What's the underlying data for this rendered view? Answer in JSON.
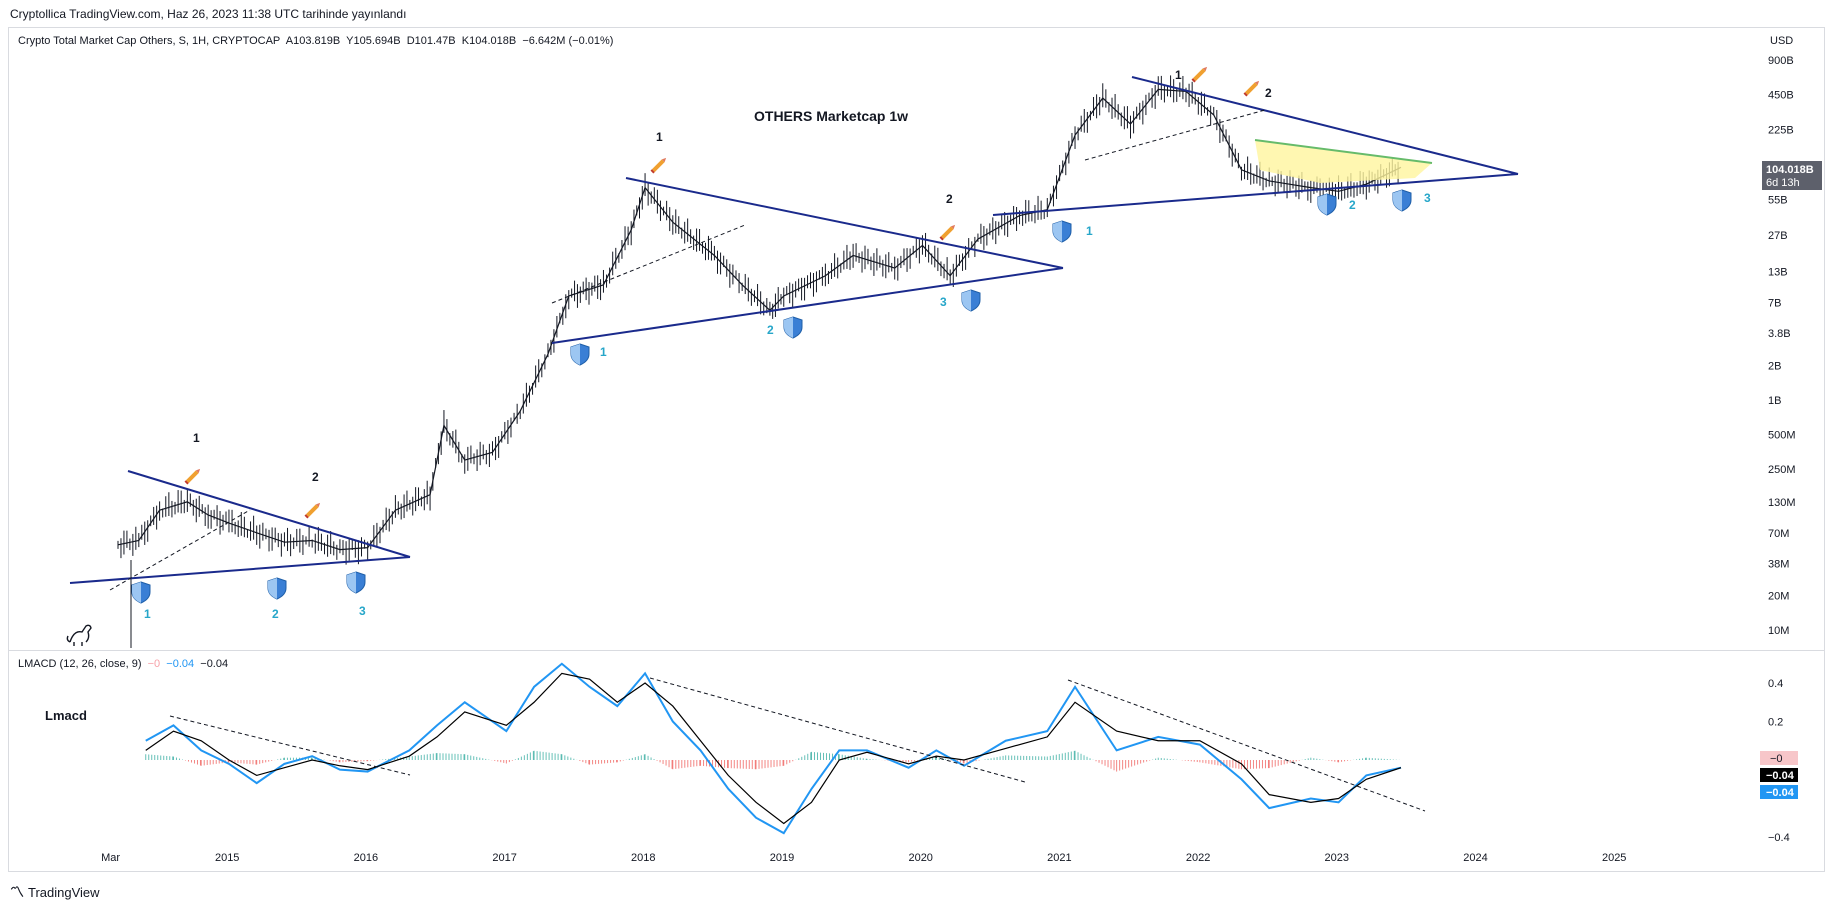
{
  "header": {
    "publisher": "Cryptollica TradingView.com, Haz 26, 2023 11:38 UTC tarihinde yayınlandı"
  },
  "legend": {
    "symbol": "Crypto Total Market Cap Others, S, 1H, CRYPTOCAP",
    "open": "A103.819B",
    "high": "Y105.694B",
    "low": "D101.47B",
    "close": "K104.018B",
    "change": "−6.642M (−0.01%)"
  },
  "currency": "USD",
  "price_tag": {
    "value": "104.018B",
    "countdown": "6d 13h"
  },
  "lmacd_legend": {
    "name": "LMACD (12, 26, close, 9)",
    "v1": "−0",
    "v2": "−0.04",
    "v3": "−0.04"
  },
  "lmacd_tags": {
    "zero": "−0",
    "signal": "−0.04",
    "macd": "−0.04"
  },
  "annotation_title": "OTHERS  Marketcap 1w",
  "lmacd_label": "Lmacd",
  "footer": {
    "brand": "TradingView"
  },
  "colors": {
    "trendline": "#1a2a8c",
    "macd": "#2196f3",
    "signal": "#000000",
    "hist_pos": "#26a69a",
    "hist_neg": "#ef5350",
    "shield": "#3a7fd5",
    "yellow_fill": "#fff59d",
    "green_line": "#66bb6a"
  },
  "chart_data": [
    {
      "type": "line",
      "scale": "log",
      "y_ticks": [
        "900B",
        "450B",
        "225B",
        "104.018B",
        "55B",
        "27B",
        "13B",
        "7B",
        "3.8B",
        "2B",
        "1B",
        "500M",
        "250M",
        "130M",
        "70M",
        "38M",
        "20M",
        "10M"
      ],
      "x_ticks": [
        "Mar",
        "2015",
        "2016",
        "2017",
        "2018",
        "2019",
        "2020",
        "2021",
        "2022",
        "2023",
        "2024",
        "2025"
      ],
      "x": [
        2014.2,
        2014.35,
        2014.5,
        2014.7,
        2014.85,
        2015.0,
        2015.2,
        2015.4,
        2015.6,
        2015.8,
        2016.0,
        2016.2,
        2016.45,
        2016.55,
        2016.7,
        2016.9,
        2017.1,
        2017.3,
        2017.45,
        2017.7,
        2017.9,
        2018.0,
        2018.2,
        2018.5,
        2018.7,
        2018.9,
        2019.0,
        2019.3,
        2019.5,
        2019.8,
        2020.0,
        2020.2,
        2020.4,
        2020.7,
        2020.9,
        2021.1,
        2021.3,
        2021.5,
        2021.7,
        2021.9,
        2022.1,
        2022.3,
        2022.5,
        2022.8,
        2023.0,
        2023.2,
        2023.45
      ],
      "values": [
        0.055,
        0.06,
        0.11,
        0.13,
        0.1,
        0.085,
        0.07,
        0.058,
        0.06,
        0.05,
        0.052,
        0.11,
        0.15,
        0.6,
        0.3,
        0.35,
        0.8,
        2.5,
        8,
        10,
        30,
        70,
        35,
        18,
        10,
        6,
        8,
        12,
        18,
        14,
        22,
        12,
        25,
        40,
        45,
        200,
        420,
        250,
        500,
        480,
        300,
        100,
        80,
        70,
        65,
        75,
        105
      ],
      "annotations": [
        "OTHERS  Marketcap 1w",
        "1",
        "2",
        "3"
      ]
    },
    {
      "type": "line",
      "title": "LMACD (12, 26, close, 9)",
      "y_ticks": [
        "0.4",
        "0.2",
        "−0.4"
      ],
      "series": [
        {
          "name": "MACD",
          "x": [
            2014.4,
            2014.6,
            2014.8,
            2015.0,
            2015.2,
            2015.4,
            2015.6,
            2015.8,
            2016.0,
            2016.3,
            2016.5,
            2016.7,
            2017.0,
            2017.2,
            2017.4,
            2017.6,
            2017.8,
            2018.0,
            2018.2,
            2018.4,
            2018.6,
            2018.8,
            2019.0,
            2019.2,
            2019.4,
            2019.6,
            2019.9,
            2020.1,
            2020.3,
            2020.6,
            2020.9,
            2021.1,
            2021.4,
            2021.7,
            2022.0,
            2022.3,
            2022.5,
            2022.8,
            2023.0,
            2023.2,
            2023.45
          ],
          "values": [
            0.1,
            0.18,
            0.05,
            -0.02,
            -0.12,
            -0.02,
            0.02,
            -0.05,
            -0.06,
            0.05,
            0.18,
            0.3,
            0.15,
            0.38,
            0.5,
            0.38,
            0.28,
            0.45,
            0.2,
            0.05,
            -0.15,
            -0.3,
            -0.38,
            -0.15,
            0.05,
            0.05,
            -0.04,
            0.05,
            -0.03,
            0.1,
            0.15,
            0.38,
            0.05,
            0.12,
            0.08,
            -0.1,
            -0.25,
            -0.2,
            -0.22,
            -0.08,
            -0.04
          ]
        },
        {
          "name": "Signal",
          "x": [
            2014.4,
            2014.6,
            2014.8,
            2015.0,
            2015.2,
            2015.4,
            2015.6,
            2015.8,
            2016.0,
            2016.3,
            2016.5,
            2016.7,
            2017.0,
            2017.2,
            2017.4,
            2017.6,
            2017.8,
            2018.0,
            2018.2,
            2018.4,
            2018.6,
            2018.8,
            2019.0,
            2019.2,
            2019.4,
            2019.6,
            2019.9,
            2020.1,
            2020.3,
            2020.6,
            2020.9,
            2021.1,
            2021.4,
            2021.7,
            2022.0,
            2022.3,
            2022.5,
            2022.8,
            2023.0,
            2023.2,
            2023.45
          ],
          "values": [
            0.05,
            0.15,
            0.1,
            0.0,
            -0.08,
            -0.04,
            0.0,
            -0.03,
            -0.05,
            0.02,
            0.12,
            0.25,
            0.18,
            0.3,
            0.45,
            0.42,
            0.3,
            0.4,
            0.28,
            0.1,
            -0.08,
            -0.22,
            -0.33,
            -0.22,
            0.0,
            0.04,
            -0.02,
            0.02,
            0.0,
            0.06,
            0.12,
            0.3,
            0.15,
            0.1,
            0.1,
            -0.02,
            -0.18,
            -0.22,
            -0.2,
            -0.1,
            -0.04
          ]
        }
      ]
    }
  ]
}
